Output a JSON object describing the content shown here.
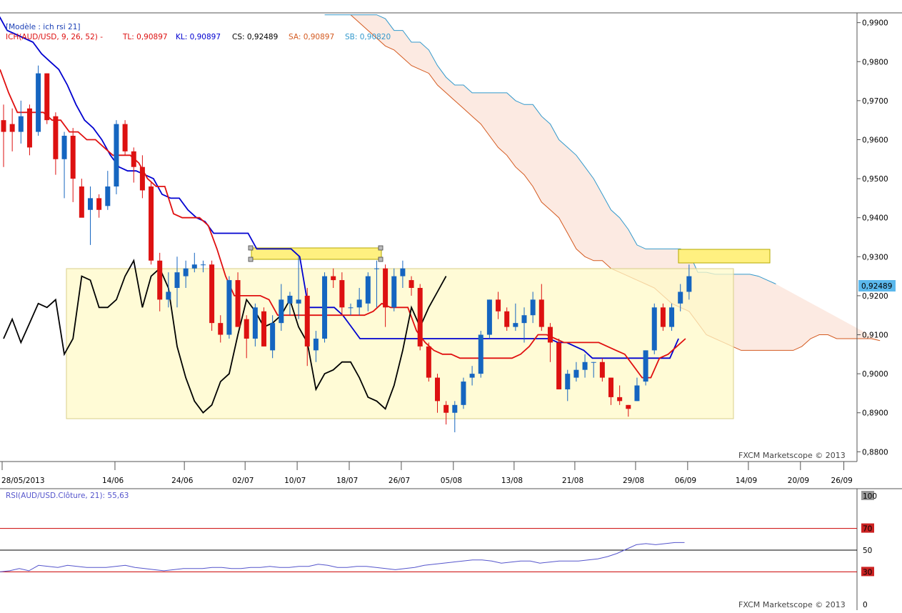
{
  "colors": {
    "bull_candle": "#1565c0",
    "bear_candle": "#dd1111",
    "tenkan": "#e01010",
    "kijun": "#0000d0",
    "chikou": "#000000",
    "cloud_fill": "#fbe6dd",
    "senkou_a": "#d45a20",
    "senkou_b": "#3399cc",
    "highlight_fill": "#fffac8",
    "highlight_yellow": "#fff080",
    "rsi_line": "#5555cc",
    "rsi_level_lines": "#cc0000",
    "price_tag_bg": "#5bb8ec"
  },
  "header": {
    "model_label": "[Modèle : ich rsi 21]",
    "ich_label": "ICH(AUD/USD, 9, 26, 52) -",
    "tl": "TL: 0,90897",
    "kl": "KL: 0,90897",
    "cs": "CS: 0,92489",
    "sa": "SA: 0,90897",
    "sb": "SB: 0,90820"
  },
  "price_axis": {
    "ticks": [
      "0,9900",
      "0,9800",
      "0,9700",
      "0,9600",
      "0,9500",
      "0,9400",
      "0,9300",
      "0,9200",
      "0,9100",
      "0,9000",
      "0,8900",
      "0,8800"
    ],
    "current_price": "0,92489"
  },
  "date_axis": {
    "labels": [
      "28/05/2013",
      "14/06",
      "24/06",
      "02/07",
      "10/07",
      "18/07",
      "26/07",
      "05/08",
      "13/08",
      "21/08",
      "29/08",
      "06/09",
      "14/09",
      "20/09",
      "26/09"
    ]
  },
  "watermark": "FXCM Marketscope © 2013",
  "rsi": {
    "label": "RSI(AUD/USD.Clôture, 21): 55,63",
    "axis_labels": [
      "100",
      "70",
      "50",
      "30",
      "0"
    ]
  },
  "chart_data": [
    {
      "type": "candlestick",
      "title": "AUD/USD",
      "ylim": [
        0.8775,
        0.9925
      ],
      "candles": [
        [
          0.965,
          0.969,
          0.953,
          0.962
        ],
        [
          0.964,
          0.968,
          0.957,
          0.962
        ],
        [
          0.962,
          0.97,
          0.959,
          0.966
        ],
        [
          0.968,
          0.969,
          0.956,
          0.958
        ],
        [
          0.962,
          0.979,
          0.961,
          0.977
        ],
        [
          0.977,
          0.977,
          0.964,
          0.965
        ],
        [
          0.966,
          0.967,
          0.951,
          0.955
        ],
        [
          0.955,
          0.962,
          0.945,
          0.961
        ],
        [
          0.961,
          0.963,
          0.944,
          0.95
        ],
        [
          0.948,
          0.95,
          0.941,
          0.94
        ],
        [
          0.942,
          0.948,
          0.933,
          0.945
        ],
        [
          0.945,
          0.946,
          0.94,
          0.942
        ],
        [
          0.943,
          0.952,
          0.942,
          0.948
        ],
        [
          0.948,
          0.965,
          0.946,
          0.964
        ],
        [
          0.964,
          0.965,
          0.956,
          0.957
        ],
        [
          0.957,
          0.958,
          0.949,
          0.953
        ],
        [
          0.953,
          0.956,
          0.945,
          0.947
        ],
        [
          0.948,
          0.949,
          0.928,
          0.929
        ],
        [
          0.929,
          0.931,
          0.916,
          0.919
        ],
        [
          0.919,
          0.926,
          0.917,
          0.921
        ],
        [
          0.922,
          0.93,
          0.917,
          0.926
        ],
        [
          0.925,
          0.929,
          0.922,
          0.927
        ],
        [
          0.927,
          0.931,
          0.926,
          0.928
        ],
        [
          0.928,
          0.929,
          0.926,
          0.928
        ],
        [
          0.928,
          0.929,
          0.911,
          0.913
        ],
        [
          0.913,
          0.915,
          0.908,
          0.91
        ],
        [
          0.91,
          0.925,
          0.909,
          0.924
        ],
        [
          0.924,
          0.926,
          0.912,
          0.912
        ],
        [
          0.914,
          0.915,
          0.904,
          0.909
        ],
        [
          0.909,
          0.918,
          0.907,
          0.917
        ],
        [
          0.916,
          0.917,
          0.907,
          0.907
        ],
        [
          0.906,
          0.915,
          0.904,
          0.913
        ],
        [
          0.913,
          0.923,
          0.911,
          0.919
        ],
        [
          0.918,
          0.921,
          0.915,
          0.92
        ],
        [
          0.918,
          0.93,
          0.914,
          0.919
        ],
        [
          0.92,
          0.922,
          0.902,
          0.907
        ],
        [
          0.906,
          0.911,
          0.903,
          0.909
        ],
        [
          0.909,
          0.926,
          0.908,
          0.925
        ],
        [
          0.925,
          0.927,
          0.922,
          0.924
        ],
        [
          0.924,
          0.926,
          0.915,
          0.917
        ],
        [
          0.917,
          0.918,
          0.915,
          0.917
        ],
        [
          0.917,
          0.922,
          0.915,
          0.919
        ],
        [
          0.918,
          0.926,
          0.916,
          0.925
        ],
        [
          0.927,
          0.929,
          0.917,
          0.927
        ],
        [
          0.927,
          0.928,
          0.912,
          0.917
        ],
        [
          0.917,
          0.927,
          0.916,
          0.925
        ],
        [
          0.925,
          0.929,
          0.922,
          0.927
        ],
        [
          0.924,
          0.925,
          0.92,
          0.922
        ],
        [
          0.922,
          0.923,
          0.906,
          0.907
        ],
        [
          0.907,
          0.908,
          0.898,
          0.899
        ],
        [
          0.899,
          0.9,
          0.89,
          0.893
        ],
        [
          0.892,
          0.893,
          0.887,
          0.89
        ],
        [
          0.89,
          0.893,
          0.885,
          0.892
        ],
        [
          0.892,
          0.899,
          0.891,
          0.898
        ],
        [
          0.899,
          0.902,
          0.897,
          0.9
        ],
        [
          0.9,
          0.911,
          0.899,
          0.91
        ],
        [
          0.91,
          0.919,
          0.909,
          0.919
        ],
        [
          0.919,
          0.921,
          0.914,
          0.916
        ],
        [
          0.916,
          0.917,
          0.911,
          0.912
        ],
        [
          0.912,
          0.918,
          0.911,
          0.913
        ],
        [
          0.913,
          0.917,
          0.908,
          0.915
        ],
        [
          0.915,
          0.921,
          0.913,
          0.919
        ],
        [
          0.919,
          0.923,
          0.911,
          0.912
        ],
        [
          0.912,
          0.913,
          0.903,
          0.908
        ],
        [
          0.908,
          0.909,
          0.896,
          0.896
        ],
        [
          0.896,
          0.901,
          0.893,
          0.9
        ],
        [
          0.899,
          0.903,
          0.898,
          0.901
        ],
        [
          0.901,
          0.905,
          0.899,
          0.903
        ],
        [
          0.903,
          0.903,
          0.899,
          0.903
        ],
        [
          0.903,
          0.904,
          0.898,
          0.899
        ],
        [
          0.899,
          0.899,
          0.892,
          0.894
        ],
        [
          0.894,
          0.897,
          0.892,
          0.893
        ],
        [
          0.892,
          0.892,
          0.889,
          0.891
        ],
        [
          0.893,
          0.899,
          0.893,
          0.897
        ],
        [
          0.898,
          0.906,
          0.897,
          0.906
        ],
        [
          0.906,
          0.918,
          0.905,
          0.917
        ],
        [
          0.917,
          0.918,
          0.911,
          0.912
        ],
        [
          0.912,
          0.918,
          0.911,
          0.917
        ],
        [
          0.918,
          0.923,
          0.916,
          0.921
        ],
        [
          0.921,
          0.928,
          0.919,
          0.925
        ]
      ],
      "tenkan": [
        0.978,
        0.972,
        0.967,
        0.967,
        0.967,
        0.967,
        0.965,
        0.965,
        0.962,
        0.962,
        0.96,
        0.96,
        0.958,
        0.956,
        0.956,
        0.956,
        0.954,
        0.95,
        0.948,
        0.948,
        0.941,
        0.94,
        0.94,
        0.94,
        0.938,
        0.932,
        0.925,
        0.92,
        0.92,
        0.92,
        0.92,
        0.919,
        0.915,
        0.915,
        0.915,
        0.915,
        0.915,
        0.915,
        0.915,
        0.915,
        0.915,
        0.915,
        0.915,
        0.916,
        0.918,
        0.917,
        0.917,
        0.917,
        0.911,
        0.908,
        0.906,
        0.905,
        0.905,
        0.904,
        0.904,
        0.904,
        0.904,
        0.904,
        0.904,
        0.904,
        0.905,
        0.907,
        0.91,
        0.91,
        0.909,
        0.908,
        0.908,
        0.908,
        0.908,
        0.908,
        0.907,
        0.906,
        0.905,
        0.902,
        0.899,
        0.899,
        0.904,
        0.905,
        0.907,
        0.909
      ],
      "kijun": [
        0.992,
        0.988,
        0.987,
        0.986,
        0.985,
        0.982,
        0.98,
        0.978,
        0.974,
        0.969,
        0.965,
        0.963,
        0.96,
        0.956,
        0.953,
        0.952,
        0.952,
        0.951,
        0.95,
        0.946,
        0.945,
        0.945,
        0.942,
        0.94,
        0.939,
        0.936,
        0.936,
        0.936,
        0.936,
        0.936,
        0.932,
        0.932,
        0.932,
        0.932,
        0.932,
        0.93,
        0.917,
        0.917,
        0.917,
        0.917,
        0.915,
        0.912,
        0.909,
        0.909,
        0.909,
        0.909,
        0.909,
        0.909,
        0.909,
        0.909,
        0.909,
        0.909,
        0.909,
        0.909,
        0.909,
        0.909,
        0.909,
        0.909,
        0.909,
        0.909,
        0.909,
        0.909,
        0.909,
        0.909,
        0.909,
        0.908,
        0.908,
        0.907,
        0.906,
        0.904,
        0.904,
        0.904,
        0.904,
        0.904,
        0.904,
        0.904,
        0.904,
        0.904,
        0.904,
        0.909
      ],
      "chikou": [
        0.909,
        0.914,
        0.908,
        0.913,
        0.918,
        0.917,
        0.919,
        0.905,
        0.909,
        0.925,
        0.924,
        0.917,
        0.917,
        0.919,
        0.925,
        0.929,
        0.917,
        0.925,
        0.927,
        0.922,
        0.907,
        0.899,
        0.893,
        0.89,
        0.892,
        0.898,
        0.9,
        0.91,
        0.919,
        0.916,
        0.912,
        0.913,
        0.915,
        0.919,
        0.912,
        0.908,
        0.896,
        0.9,
        0.901,
        0.903,
        0.903,
        0.899,
        0.894,
        0.893,
        0.891,
        0.897,
        0.906,
        0.917,
        0.912,
        0.917,
        0.921,
        0.925
      ],
      "senkou_a": [
        0.992,
        0.99,
        0.988,
        0.986,
        0.984,
        0.983,
        0.981,
        0.979,
        0.978,
        0.977,
        0.974,
        0.972,
        0.97,
        0.968,
        0.966,
        0.964,
        0.961,
        0.958,
        0.956,
        0.953,
        0.951,
        0.948,
        0.944,
        0.942,
        0.94,
        0.936,
        0.932,
        0.93,
        0.929,
        0.929,
        0.927,
        0.926,
        0.925,
        0.924,
        0.923,
        0.922,
        0.92,
        0.918,
        0.917,
        0.916,
        0.913,
        0.91,
        0.909,
        0.908,
        0.907,
        0.906,
        0.906,
        0.906,
        0.906,
        0.906,
        0.906,
        0.906,
        0.907,
        0.909,
        0.91,
        0.91,
        0.909,
        0.909,
        0.909,
        0.909,
        0.909,
        0.9085
      ],
      "senkou_b": [
        0.992,
        0.992,
        0.992,
        0.992,
        0.992,
        0.992,
        0.992,
        0.991,
        0.988,
        0.988,
        0.985,
        0.985,
        0.983,
        0.979,
        0.976,
        0.974,
        0.974,
        0.972,
        0.972,
        0.972,
        0.972,
        0.972,
        0.97,
        0.969,
        0.969,
        0.966,
        0.964,
        0.96,
        0.958,
        0.956,
        0.953,
        0.95,
        0.946,
        0.942,
        0.94,
        0.937,
        0.933,
        0.932,
        0.932,
        0.932,
        0.932,
        0.932,
        0.931,
        0.926,
        0.926,
        0.9255,
        0.9255,
        0.9255,
        0.9255,
        0.9255,
        0.925,
        0.924,
        0.923
      ],
      "rsi": [
        30,
        31,
        33,
        31,
        36,
        35,
        34,
        36,
        35,
        34,
        34,
        34,
        35,
        36,
        34,
        33,
        32,
        31,
        32,
        33,
        33,
        33,
        34,
        34,
        33,
        33,
        34,
        34,
        35,
        34,
        34,
        35,
        35,
        37,
        36,
        34,
        34,
        35,
        35,
        34,
        33,
        32,
        33,
        34,
        36,
        37,
        38,
        39,
        40,
        41,
        41,
        40,
        38,
        39,
        40,
        40,
        38,
        39,
        40,
        40,
        40,
        41,
        42,
        44,
        47,
        51,
        55,
        56,
        55,
        56,
        57,
        57
      ],
      "rsi_ylim": [
        0,
        100
      ],
      "rsi_levels": [
        70,
        50,
        30
      ]
    }
  ]
}
